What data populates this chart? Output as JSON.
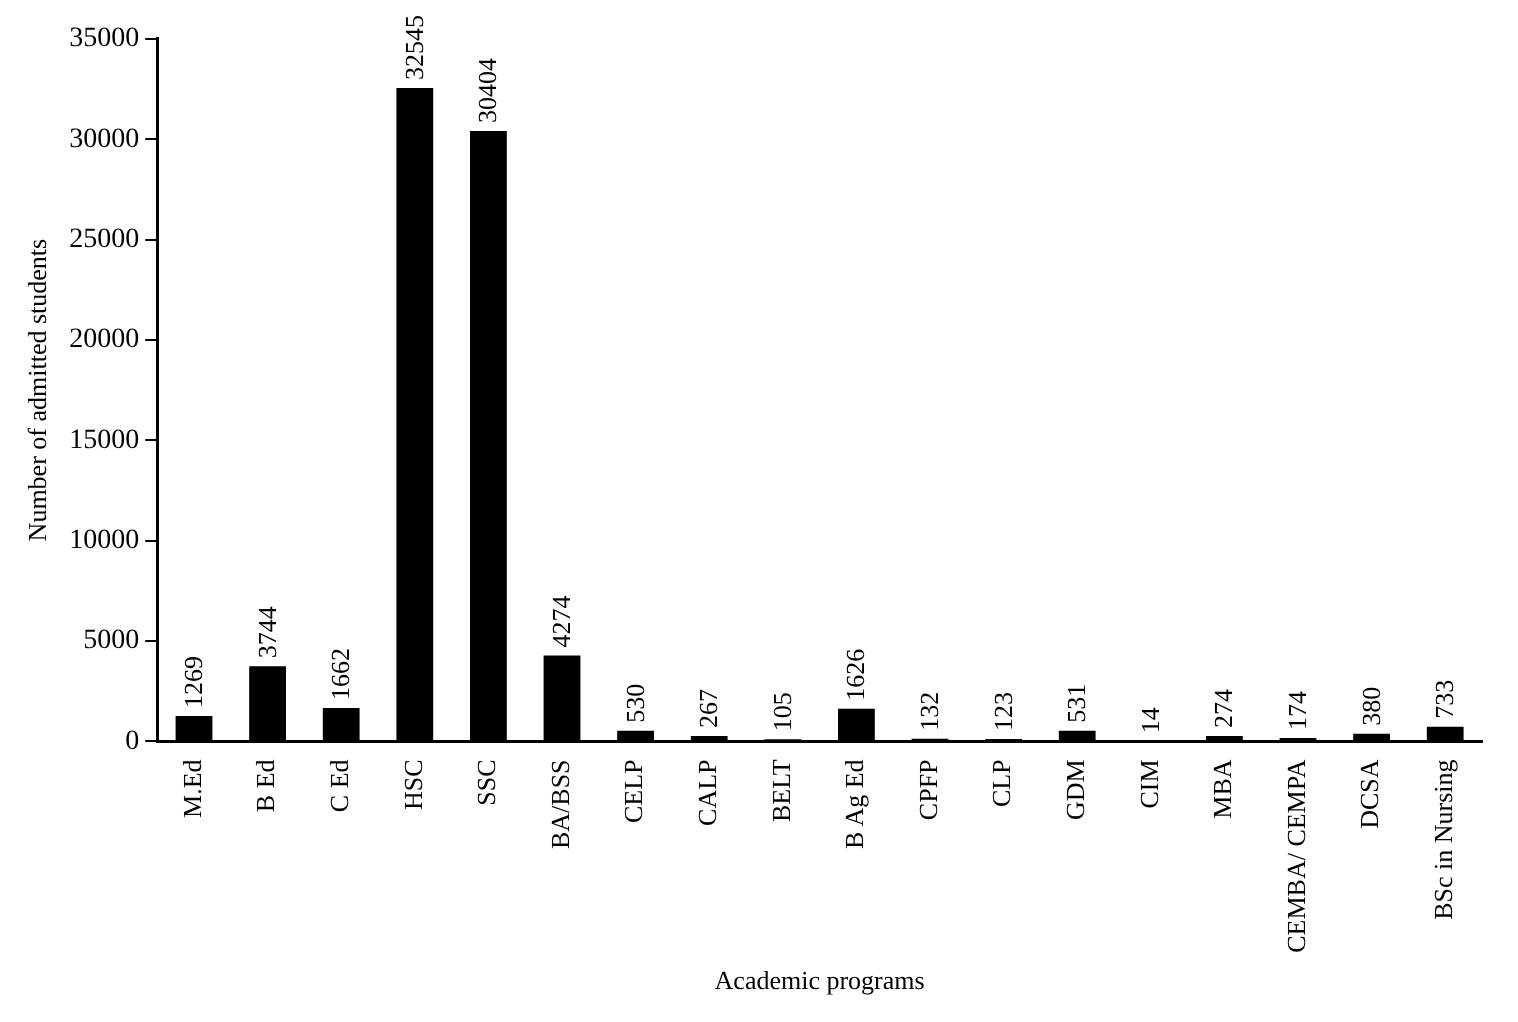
{
  "chart_data": {
    "type": "bar",
    "xlabel": "Academic programs",
    "ylabel": "Number of admitted students",
    "categories": [
      "M.Ed",
      "B Ed",
      "C Ed",
      "HSC",
      "SSC",
      "BA/BSS",
      "CELP",
      "CALP",
      "BELT",
      "B Ag Ed",
      "CPFP",
      "CLP",
      "GDM",
      "CIM",
      "MBA",
      "CEMBA/ CEMPA",
      "DCSA",
      "BSc in Nursing"
    ],
    "values": [
      1269,
      3744,
      1662,
      32545,
      30404,
      4274,
      530,
      267,
      105,
      1626,
      132,
      123,
      531,
      14,
      274,
      174,
      380,
      733
    ],
    "color": "#000000",
    "ylim": [
      0,
      35000
    ],
    "yticks": [
      0,
      5000,
      10000,
      15000,
      20000,
      25000,
      30000,
      35000
    ],
    "data_labels": true,
    "grid": false,
    "legend": false
  }
}
